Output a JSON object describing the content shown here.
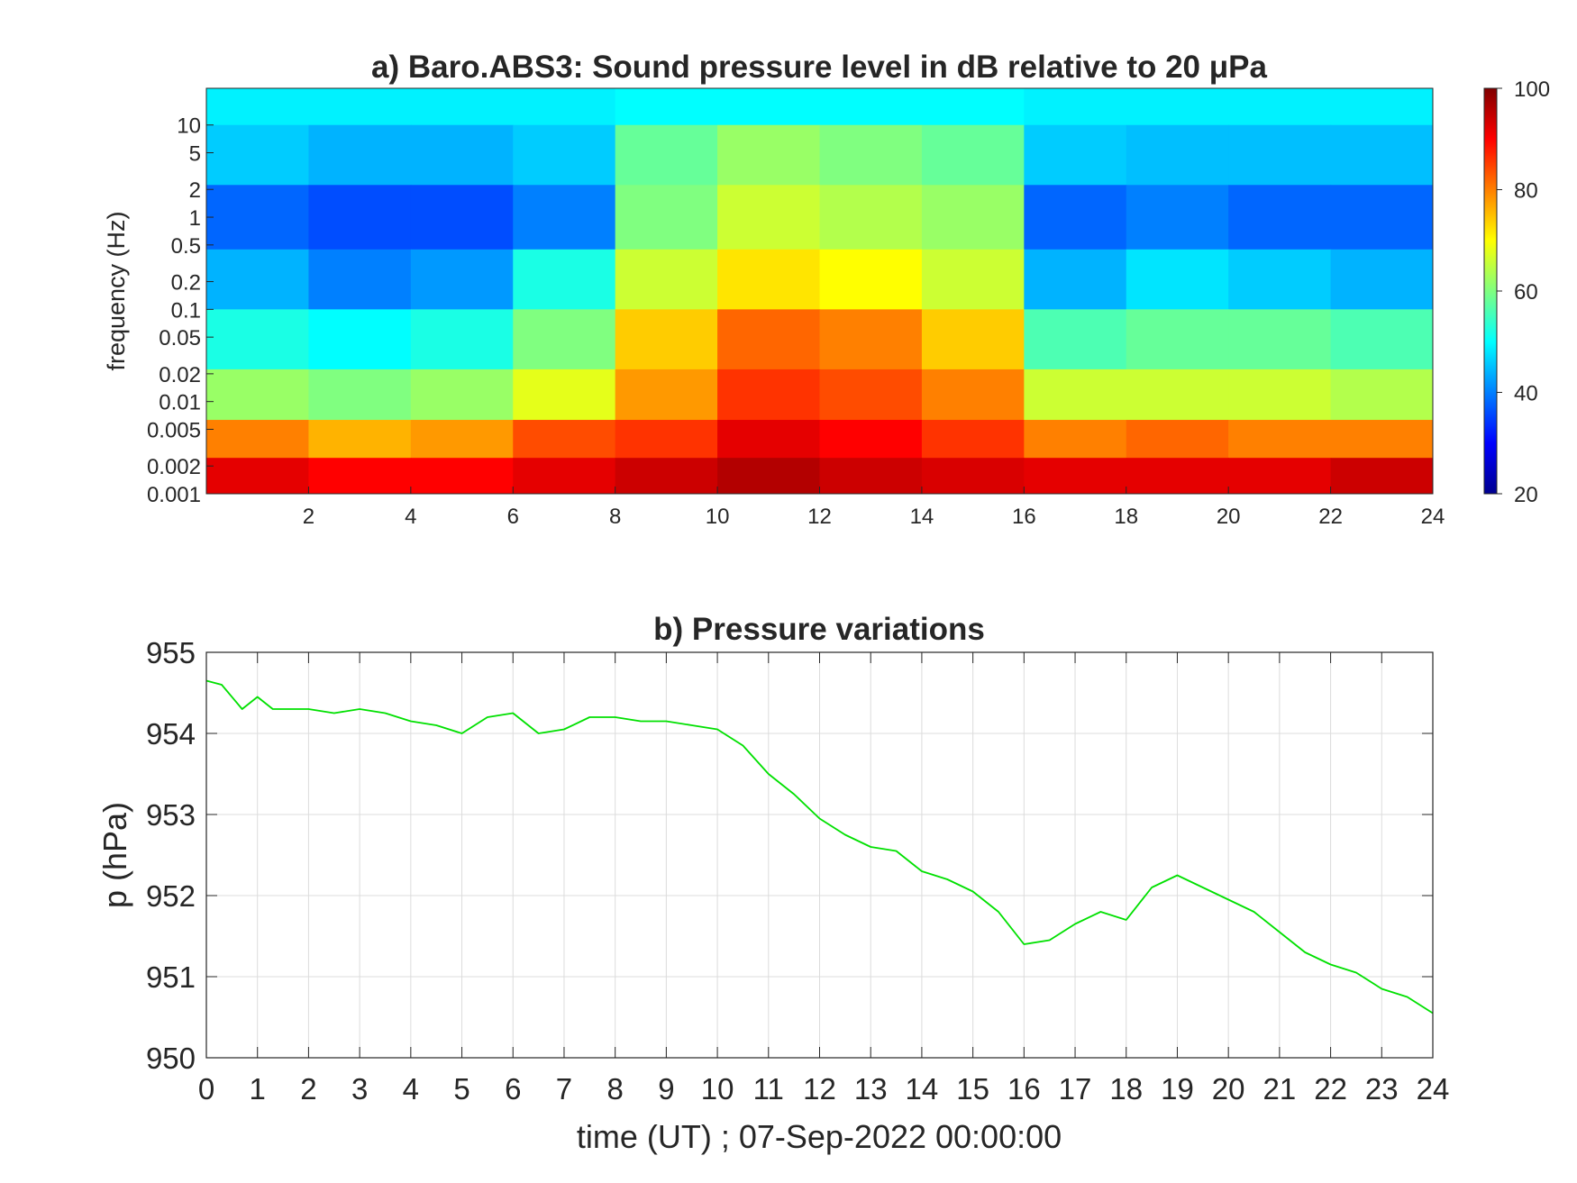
{
  "figure": {
    "spectrogram": {
      "title": "a) Baro.ABS3: Sound pressure level in dB relative to 20 μPa",
      "ylabel": "frequency (Hz)",
      "x_ticks": [
        "2",
        "4",
        "6",
        "8",
        "10",
        "12",
        "14",
        "16",
        "18",
        "20",
        "22",
        "24"
      ],
      "y_ticks": [
        "10",
        "5",
        "2",
        "1",
        "0.5",
        "0.2",
        "0.1",
        "0.05",
        "0.02",
        "0.01",
        "0.005",
        "0.002",
        "0.001"
      ],
      "colorbar_ticks": [
        "100",
        "80",
        "60",
        "40",
        "20"
      ]
    },
    "pressure": {
      "title": "b) Pressure variations",
      "xlabel": "time (UT) ; 07-Sep-2022 00:00:00",
      "ylabel": "p (hPa)",
      "x_ticks": [
        "0",
        "1",
        "2",
        "3",
        "4",
        "5",
        "6",
        "7",
        "8",
        "9",
        "10",
        "11",
        "12",
        "13",
        "14",
        "15",
        "16",
        "17",
        "18",
        "19",
        "20",
        "21",
        "22",
        "23",
        "24"
      ],
      "y_ticks": [
        "955",
        "954",
        "953",
        "952",
        "951",
        "950"
      ],
      "line_color": "#00e000"
    }
  },
  "chart_data": [
    {
      "type": "heatmap",
      "title": "a) Baro.ABS3: Sound pressure level in dB relative to 20 μPa",
      "xlabel": "",
      "ylabel": "frequency (Hz)",
      "x_range": [
        0,
        24
      ],
      "y_range": [
        0.001,
        25
      ],
      "y_scale": "log",
      "colormap": "jet",
      "color_range": [
        20,
        100
      ],
      "colorbar_label": "",
      "x_ticks": [
        2,
        4,
        6,
        8,
        10,
        12,
        14,
        16,
        18,
        20,
        22,
        24
      ],
      "y_ticks": [
        0.001,
        0.002,
        0.005,
        0.01,
        0.02,
        0.05,
        0.1,
        0.2,
        0.5,
        1,
        2,
        5,
        10
      ],
      "frequency_bands_hz": [
        20,
        5,
        1,
        0.2,
        0.05,
        0.01,
        0.004,
        0.0015
      ],
      "time_bins_h": [
        1,
        3,
        5,
        7,
        9,
        11,
        13,
        15,
        17,
        19,
        21,
        23
      ],
      "values_db": [
        [
          49,
          49,
          49,
          49,
          50,
          50,
          50,
          50,
          49,
          49,
          49,
          49
        ],
        [
          46,
          44,
          44,
          46,
          58,
          62,
          60,
          58,
          46,
          45,
          45,
          45
        ],
        [
          38,
          36,
          36,
          40,
          60,
          66,
          64,
          62,
          38,
          40,
          38,
          38
        ],
        [
          44,
          40,
          42,
          52,
          66,
          72,
          70,
          66,
          44,
          48,
          46,
          44
        ],
        [
          52,
          50,
          52,
          60,
          74,
          82,
          80,
          74,
          56,
          58,
          58,
          56
        ],
        [
          62,
          60,
          62,
          68,
          78,
          86,
          84,
          80,
          66,
          66,
          66,
          64
        ],
        [
          80,
          76,
          78,
          84,
          86,
          92,
          90,
          86,
          80,
          82,
          80,
          80
        ],
        [
          92,
          90,
          90,
          92,
          94,
          96,
          94,
          93,
          92,
          92,
          92,
          94
        ]
      ]
    },
    {
      "type": "line",
      "title": "b) Pressure variations",
      "xlabel": "time (UT) ; 07-Sep-2022 00:00:00",
      "ylabel": "p (hPa)",
      "xlim": [
        0,
        24
      ],
      "ylim": [
        950,
        955
      ],
      "grid": true,
      "series": [
        {
          "color": "#00e000",
          "x": [
            0,
            0.3,
            0.7,
            1.0,
            1.3,
            2.0,
            2.5,
            3.0,
            3.5,
            4.0,
            4.5,
            5.0,
            5.5,
            6.0,
            6.5,
            7.0,
            7.5,
            8.0,
            8.5,
            9.0,
            9.5,
            10.0,
            10.5,
            11.0,
            11.5,
            12.0,
            12.5,
            13.0,
            13.5,
            14.0,
            14.5,
            15.0,
            15.5,
            16.0,
            16.5,
            17.0,
            17.5,
            18.0,
            18.5,
            19.0,
            19.5,
            20.0,
            20.5,
            21.0,
            21.5,
            22.0,
            22.5,
            23.0,
            23.5,
            24.0
          ],
          "y": [
            954.65,
            954.6,
            954.3,
            954.45,
            954.3,
            954.3,
            954.25,
            954.3,
            954.25,
            954.15,
            954.1,
            954.0,
            954.2,
            954.25,
            954.0,
            954.05,
            954.2,
            954.2,
            954.15,
            954.15,
            954.1,
            954.05,
            953.85,
            953.5,
            953.25,
            952.95,
            952.75,
            952.6,
            952.55,
            952.3,
            952.2,
            952.05,
            951.8,
            951.4,
            951.45,
            951.65,
            951.8,
            951.7,
            952.1,
            952.25,
            952.1,
            951.95,
            951.8,
            951.55,
            951.3,
            951.15,
            951.05,
            950.85,
            950.75,
            950.55
          ]
        }
      ]
    }
  ]
}
